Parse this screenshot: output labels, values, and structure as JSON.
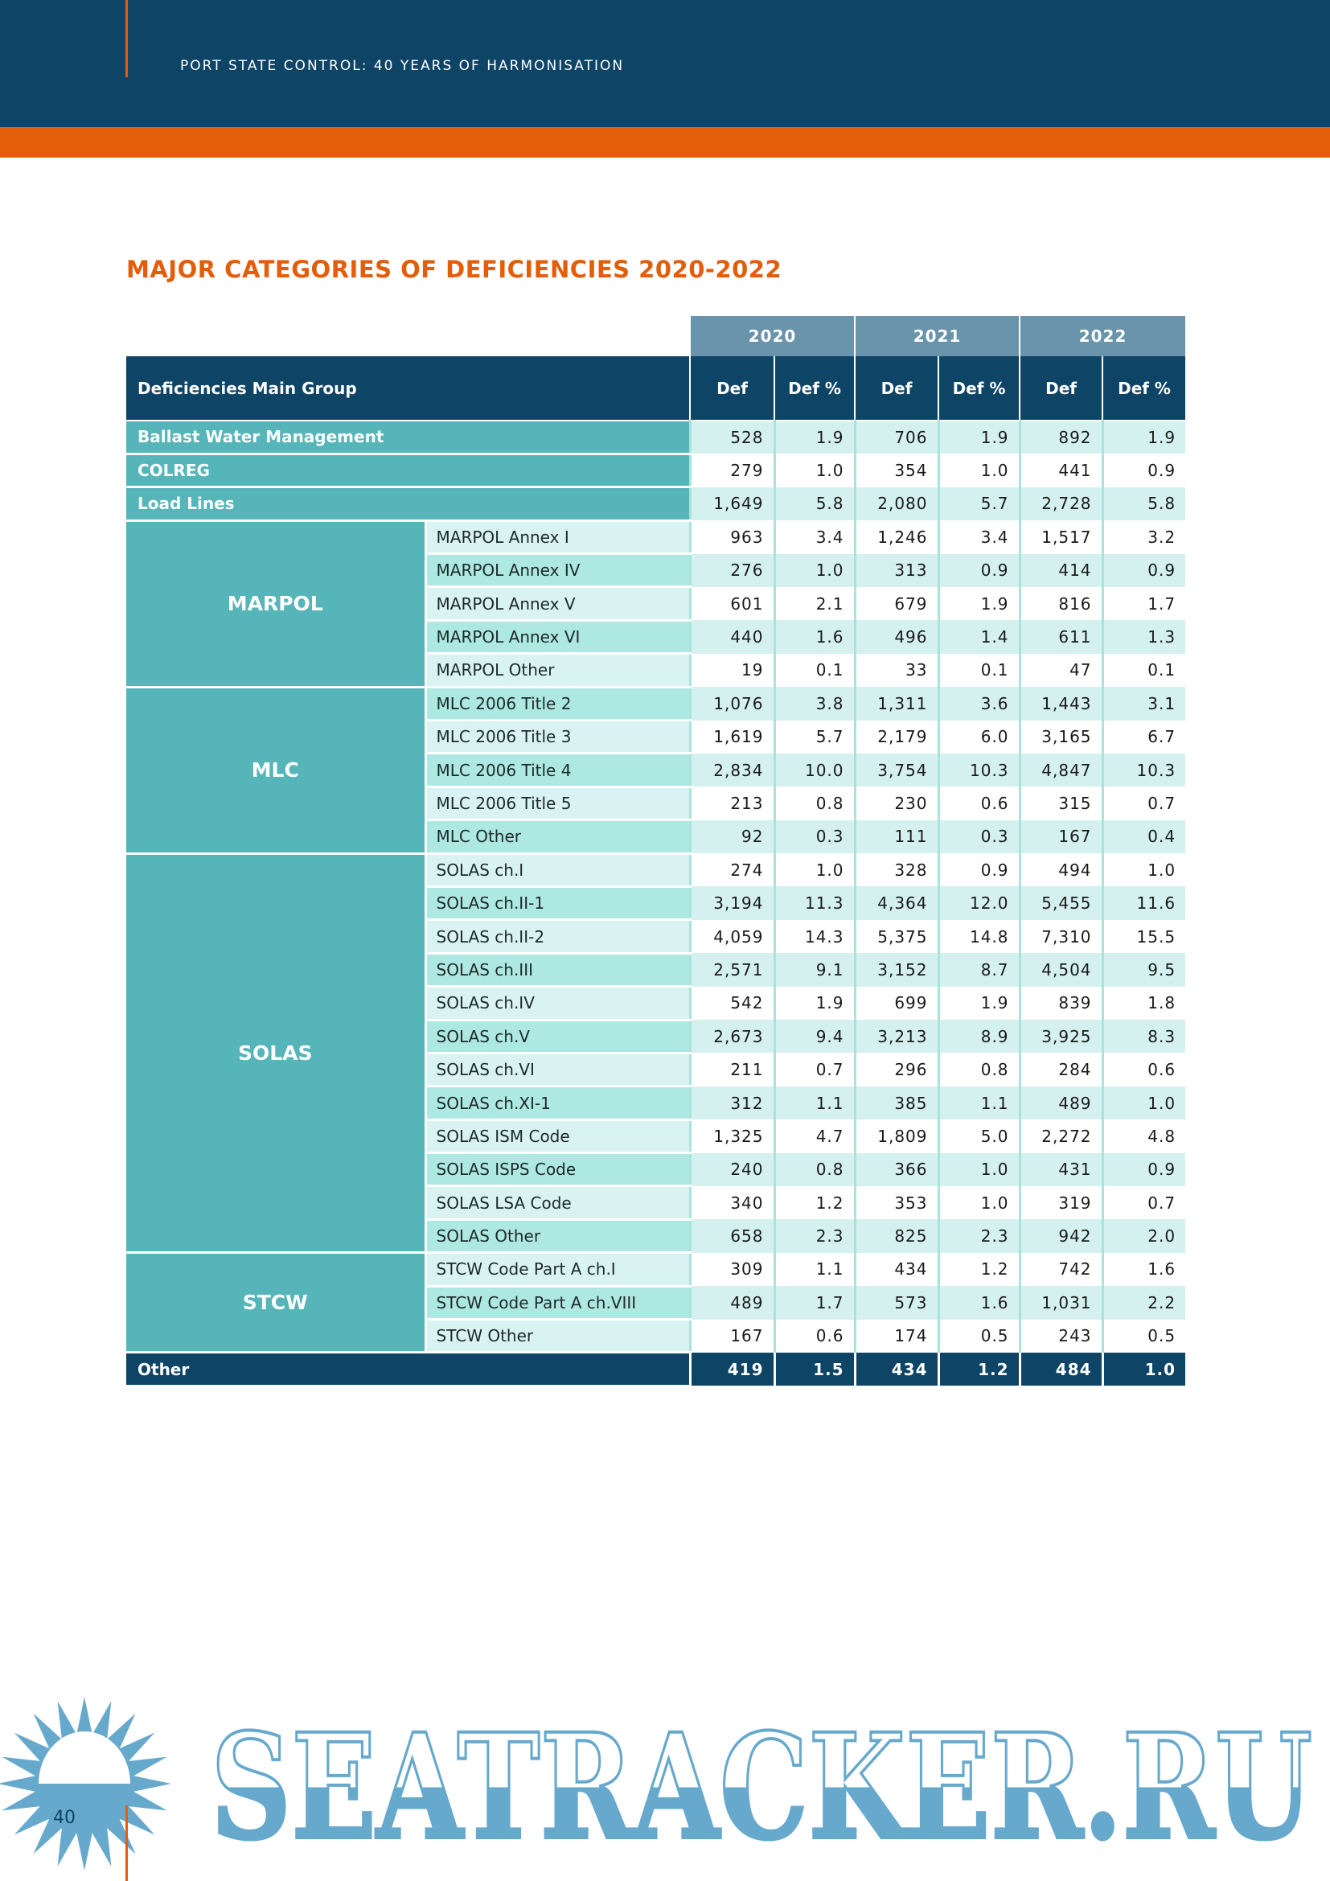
{
  "header": {
    "running_title": "PORT STATE CONTROL: 40 YEARS OF HARMONISATION"
  },
  "title": "MAJOR CATEGORIES OF DEFICIENCIES 2020-2022",
  "table": {
    "main_header": "Deficiencies Main Group",
    "years": [
      "2020",
      "2021",
      "2022"
    ],
    "col_labels": [
      "Def",
      "Def %",
      "Def",
      "Def %",
      "Def",
      "Def %"
    ],
    "groups": [
      {
        "name": "Ballast Water Management",
        "rows": [
          {
            "label": "",
            "values": [
              "528",
              "1.9",
              "706",
              "1.9",
              "892",
              "1.9"
            ]
          }
        ]
      },
      {
        "name": "COLREG",
        "rows": [
          {
            "label": "",
            "values": [
              "279",
              "1.0",
              "354",
              "1.0",
              "441",
              "0.9"
            ]
          }
        ]
      },
      {
        "name": "Load Lines",
        "rows": [
          {
            "label": "",
            "values": [
              "1,649",
              "5.8",
              "2,080",
              "5.7",
              "2,728",
              "5.8"
            ]
          }
        ]
      },
      {
        "name": "MARPOL",
        "rows": [
          {
            "label": "MARPOL Annex I",
            "values": [
              "963",
              "3.4",
              "1,246",
              "3.4",
              "1,517",
              "3.2"
            ]
          },
          {
            "label": "MARPOL Annex IV",
            "values": [
              "276",
              "1.0",
              "313",
              "0.9",
              "414",
              "0.9"
            ]
          },
          {
            "label": "MARPOL Annex V",
            "values": [
              "601",
              "2.1",
              "679",
              "1.9",
              "816",
              "1.7"
            ]
          },
          {
            "label": "MARPOL Annex VI",
            "values": [
              "440",
              "1.6",
              "496",
              "1.4",
              "611",
              "1.3"
            ]
          },
          {
            "label": "MARPOL Other",
            "values": [
              "19",
              "0.1",
              "33",
              "0.1",
              "47",
              "0.1"
            ]
          }
        ]
      },
      {
        "name": "MLC",
        "rows": [
          {
            "label": "MLC 2006 Title 2",
            "values": [
              "1,076",
              "3.8",
              "1,311",
              "3.6",
              "1,443",
              "3.1"
            ]
          },
          {
            "label": "MLC 2006 Title 3",
            "values": [
              "1,619",
              "5.7",
              "2,179",
              "6.0",
              "3,165",
              "6.7"
            ]
          },
          {
            "label": "MLC 2006 Title 4",
            "values": [
              "2,834",
              "10.0",
              "3,754",
              "10.3",
              "4,847",
              "10.3"
            ]
          },
          {
            "label": "MLC 2006 Title 5",
            "values": [
              "213",
              "0.8",
              "230",
              "0.6",
              "315",
              "0.7"
            ]
          },
          {
            "label": "MLC Other",
            "values": [
              "92",
              "0.3",
              "111",
              "0.3",
              "167",
              "0.4"
            ]
          }
        ]
      },
      {
        "name": "SOLAS",
        "rows": [
          {
            "label": "SOLAS ch.I",
            "values": [
              "274",
              "1.0",
              "328",
              "0.9",
              "494",
              "1.0"
            ]
          },
          {
            "label": "SOLAS ch.II-1",
            "values": [
              "3,194",
              "11.3",
              "4,364",
              "12.0",
              "5,455",
              "11.6"
            ]
          },
          {
            "label": "SOLAS ch.II-2",
            "values": [
              "4,059",
              "14.3",
              "5,375",
              "14.8",
              "7,310",
              "15.5"
            ]
          },
          {
            "label": "SOLAS ch.III",
            "values": [
              "2,571",
              "9.1",
              "3,152",
              "8.7",
              "4,504",
              "9.5"
            ]
          },
          {
            "label": "SOLAS ch.IV",
            "values": [
              "542",
              "1.9",
              "699",
              "1.9",
              "839",
              "1.8"
            ]
          },
          {
            "label": "SOLAS ch.V",
            "values": [
              "2,673",
              "9.4",
              "3,213",
              "8.9",
              "3,925",
              "8.3"
            ]
          },
          {
            "label": "SOLAS ch.VI",
            "values": [
              "211",
              "0.7",
              "296",
              "0.8",
              "284",
              "0.6"
            ]
          },
          {
            "label": "SOLAS ch.XI-1",
            "values": [
              "312",
              "1.1",
              "385",
              "1.1",
              "489",
              "1.0"
            ]
          },
          {
            "label": "SOLAS ISM Code",
            "values": [
              "1,325",
              "4.7",
              "1,809",
              "5.0",
              "2,272",
              "4.8"
            ]
          },
          {
            "label": "SOLAS ISPS Code",
            "values": [
              "240",
              "0.8",
              "366",
              "1.0",
              "431",
              "0.9"
            ]
          },
          {
            "label": "SOLAS LSA Code",
            "values": [
              "340",
              "1.2",
              "353",
              "1.0",
              "319",
              "0.7"
            ]
          },
          {
            "label": "SOLAS Other",
            "values": [
              "658",
              "2.3",
              "825",
              "2.3",
              "942",
              "2.0"
            ]
          }
        ]
      },
      {
        "name": "STCW",
        "rows": [
          {
            "label": "STCW Code Part A ch.I",
            "values": [
              "309",
              "1.1",
              "434",
              "1.2",
              "742",
              "1.6"
            ]
          },
          {
            "label": "STCW Code Part A ch.VIII",
            "values": [
              "489",
              "1.7",
              "573",
              "1.6",
              "1,031",
              "2.2"
            ]
          },
          {
            "label": "STCW Other",
            "values": [
              "167",
              "0.6",
              "174",
              "0.5",
              "243",
              "0.5"
            ]
          }
        ]
      }
    ],
    "other": {
      "name": "Other",
      "values": [
        "419",
        "1.5",
        "434",
        "1.2",
        "484",
        "1.0"
      ]
    }
  },
  "page_number": "40",
  "watermark": {
    "text": "SEATRACKER.RU",
    "color": "#67a9cc"
  },
  "colors": {
    "navy": "#0e4466",
    "orange": "#e35d0b",
    "teal": "#55b5b8"
  }
}
